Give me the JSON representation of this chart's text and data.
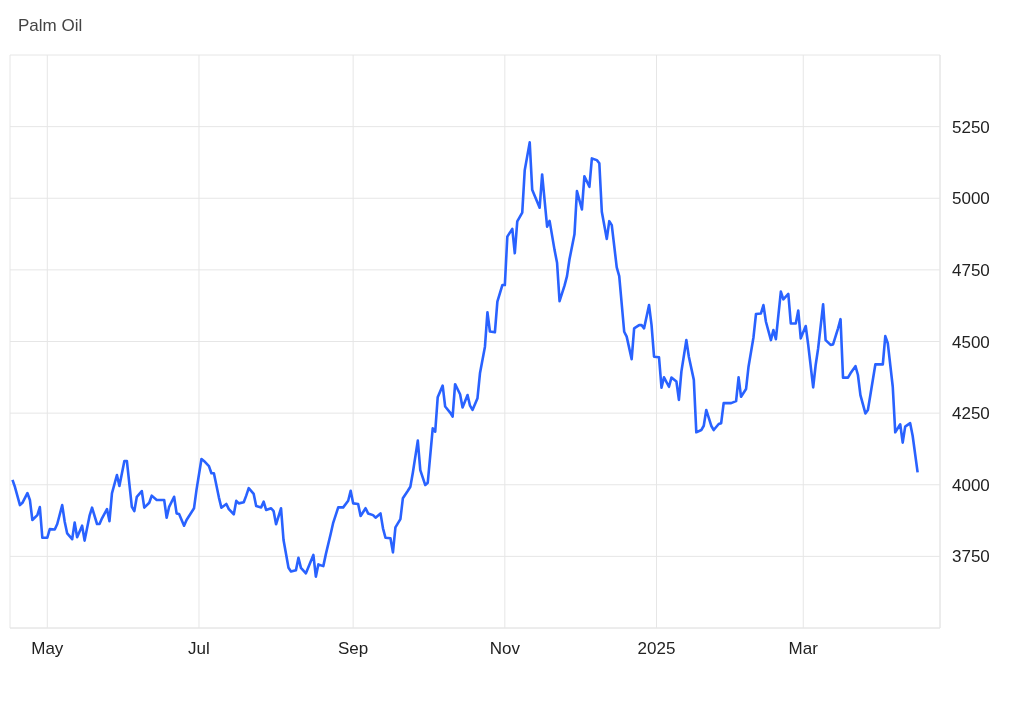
{
  "chart_data": {
    "type": "line",
    "title": "Palm Oil",
    "x": [
      "2024-04-17",
      "2024-04-18",
      "2024-04-20",
      "2024-04-21",
      "2024-04-23",
      "2024-04-24",
      "2024-04-25",
      "2024-04-27",
      "2024-04-28",
      "2024-04-29",
      "2024-05-01",
      "2024-05-02",
      "2024-05-04",
      "2024-05-05",
      "2024-05-07",
      "2024-05-08",
      "2024-05-09",
      "2024-05-11",
      "2024-05-12",
      "2024-05-13",
      "2024-05-15",
      "2024-05-16",
      "2024-05-18",
      "2024-05-19",
      "2024-05-21",
      "2024-05-22",
      "2024-05-23",
      "2024-05-25",
      "2024-05-26",
      "2024-05-27",
      "2024-05-29",
      "2024-05-30",
      "2024-06-01",
      "2024-06-02",
      "2024-06-04",
      "2024-06-05",
      "2024-06-06",
      "2024-06-08",
      "2024-06-09",
      "2024-06-11",
      "2024-06-12",
      "2024-06-14",
      "2024-06-17",
      "2024-06-18",
      "2024-06-19",
      "2024-06-21",
      "2024-06-22",
      "2024-06-23",
      "2024-06-25",
      "2024-06-26",
      "2024-06-29",
      "2024-06-30",
      "2024-07-02",
      "2024-07-03",
      "2024-07-05",
      "2024-07-06",
      "2024-07-07",
      "2024-07-09",
      "2024-07-10",
      "2024-07-12",
      "2024-07-13",
      "2024-07-15",
      "2024-07-16",
      "2024-07-17",
      "2024-07-19",
      "2024-07-20",
      "2024-07-21",
      "2024-07-23",
      "2024-07-24",
      "2024-07-26",
      "2024-07-27",
      "2024-07-28",
      "2024-07-30",
      "2024-07-31",
      "2024-08-01",
      "2024-08-03",
      "2024-08-04",
      "2024-08-06",
      "2024-08-07",
      "2024-08-09",
      "2024-08-10",
      "2024-08-11",
      "2024-08-13",
      "2024-08-16",
      "2024-08-17",
      "2024-08-18",
      "2024-08-20",
      "2024-08-21",
      "2024-08-23",
      "2024-08-24",
      "2024-08-26",
      "2024-08-28",
      "2024-08-30",
      "2024-08-31",
      "2024-09-01",
      "2024-09-03",
      "2024-09-04",
      "2024-09-06",
      "2024-09-07",
      "2024-09-09",
      "2024-09-10",
      "2024-09-12",
      "2024-09-13",
      "2024-09-14",
      "2024-09-16",
      "2024-09-17",
      "2024-09-18",
      "2024-09-20",
      "2024-09-21",
      "2024-09-23",
      "2024-09-24",
      "2024-09-25",
      "2024-09-27",
      "2024-09-28",
      "2024-09-30",
      "2024-10-01",
      "2024-10-03",
      "2024-10-04",
      "2024-10-05",
      "2024-10-07",
      "2024-10-08",
      "2024-10-10",
      "2024-10-11",
      "2024-10-12",
      "2024-10-14",
      "2024-10-15",
      "2024-10-17",
      "2024-10-18",
      "2024-10-19",
      "2024-10-21",
      "2024-10-22",
      "2024-10-24",
      "2024-10-25",
      "2024-10-26",
      "2024-10-28",
      "2024-10-29",
      "2024-10-31",
      "2024-11-01",
      "2024-11-02",
      "2024-11-04",
      "2024-11-05",
      "2024-11-06",
      "2024-11-08",
      "2024-11-09",
      "2024-11-11",
      "2024-11-12",
      "2024-11-14",
      "2024-11-15",
      "2024-11-16",
      "2024-11-18",
      "2024-11-19",
      "2024-11-21",
      "2024-11-22",
      "2024-11-23",
      "2024-11-25",
      "2024-11-26",
      "2024-11-27",
      "2024-11-29",
      "2024-11-30",
      "2024-12-02",
      "2024-12-03",
      "2024-12-05",
      "2024-12-06",
      "2024-12-08",
      "2024-12-09",
      "2024-12-10",
      "2024-12-12",
      "2024-12-13",
      "2024-12-14",
      "2024-12-16",
      "2024-12-17",
      "2024-12-19",
      "2024-12-20",
      "2024-12-22",
      "2024-12-23",
      "2024-12-25",
      "2024-12-26",
      "2024-12-27",
      "2024-12-29",
      "2024-12-30",
      "2024-12-31",
      "2025-01-02",
      "2025-01-03",
      "2025-01-04",
      "2025-01-06",
      "2025-01-07",
      "2025-01-09",
      "2025-01-10",
      "2025-01-11",
      "2025-01-13",
      "2025-01-14",
      "2025-01-16",
      "2025-01-17",
      "2025-01-19",
      "2025-01-20",
      "2025-01-21",
      "2025-01-23",
      "2025-01-24",
      "2025-01-26",
      "2025-01-27",
      "2025-01-28",
      "2025-01-30",
      "2025-01-31",
      "2025-02-02",
      "2025-02-03",
      "2025-02-04",
      "2025-02-06",
      "2025-02-07",
      "2025-02-09",
      "2025-02-10",
      "2025-02-12",
      "2025-02-13",
      "2025-02-14",
      "2025-02-16",
      "2025-02-17",
      "2025-02-18",
      "2025-02-20",
      "2025-02-21",
      "2025-02-23",
      "2025-02-24",
      "2025-02-26",
      "2025-02-27",
      "2025-02-28",
      "2025-03-02",
      "2025-03-03",
      "2025-03-05",
      "2025-03-06",
      "2025-03-07",
      "2025-03-09",
      "2025-03-10",
      "2025-03-12",
      "2025-03-13",
      "2025-03-15",
      "2025-03-16",
      "2025-03-17",
      "2025-03-19",
      "2025-03-20",
      "2025-03-22",
      "2025-03-23",
      "2025-03-24",
      "2025-03-26",
      "2025-03-27",
      "2025-03-28",
      "2025-03-30",
      "2025-03-31",
      "2025-04-02",
      "2025-04-03",
      "2025-04-04",
      "2025-04-06",
      "2025-04-07",
      "2025-04-09",
      "2025-04-10",
      "2025-04-11",
      "2025-04-13",
      "2025-04-14",
      "2025-04-16"
    ],
    "series": [
      {
        "color": "#2962ff",
        "values": [
          4017,
          3992,
          3929,
          3937,
          3971,
          3947,
          3877,
          3894,
          3922,
          3815,
          3815,
          3845,
          3844,
          3863,
          3929,
          3871,
          3830,
          3810,
          3868,
          3817,
          3857,
          3805,
          3892,
          3920,
          3863,
          3863,
          3883,
          3915,
          3873,
          3970,
          4034,
          3996,
          4083,
          4083,
          3923,
          3908,
          3958,
          3978,
          3920,
          3937,
          3962,
          3947,
          3947,
          3885,
          3923,
          3958,
          3900,
          3898,
          3857,
          3877,
          3918,
          3982,
          4090,
          4083,
          4065,
          4040,
          4040,
          3956,
          3920,
          3933,
          3915,
          3897,
          3944,
          3935,
          3939,
          3962,
          3988,
          3968,
          3926,
          3921,
          3941,
          3912,
          3918,
          3908,
          3862,
          3918,
          3807,
          3710,
          3697,
          3702,
          3745,
          3710,
          3691,
          3755,
          3679,
          3722,
          3716,
          3757,
          3830,
          3868,
          3921,
          3921,
          3944,
          3979,
          3935,
          3933,
          3891,
          3918,
          3900,
          3894,
          3885,
          3900,
          3848,
          3815,
          3813,
          3764,
          3851,
          3880,
          3953,
          3979,
          3993,
          4042,
          4154,
          4051,
          3999,
          4007,
          4197,
          4185,
          4305,
          4346,
          4273,
          4252,
          4238,
          4351,
          4316,
          4270,
          4313,
          4276,
          4261,
          4302,
          4389,
          4482,
          4602,
          4535,
          4532,
          4639,
          4697,
          4697,
          4866,
          4893,
          4808,
          4919,
          4950,
          5098,
          5195,
          5030,
          4988,
          4967,
          5083,
          4901,
          4921,
          4819,
          4775,
          4641,
          4695,
          4728,
          4787,
          4874,
          5025,
          4961,
          5077,
          5040,
          5139,
          5133,
          5122,
          4953,
          4858,
          4920,
          4906,
          4759,
          4728,
          4534,
          4517,
          4438,
          4546,
          4557,
          4557,
          4546,
          4627,
          4557,
          4447,
          4445,
          4339,
          4375,
          4342,
          4374,
          4360,
          4296,
          4395,
          4505,
          4447,
          4366,
          4183,
          4191,
          4206,
          4261,
          4206,
          4191,
          4212,
          4215,
          4285,
          4285,
          4285,
          4292,
          4375,
          4307,
          4334,
          4412,
          4515,
          4596,
          4598,
          4627,
          4569,
          4505,
          4540,
          4508,
          4674,
          4647,
          4666,
          4563,
          4563,
          4608,
          4511,
          4554,
          4488,
          4340,
          4418,
          4476,
          4630,
          4505,
          4488,
          4490,
          4546,
          4578,
          4374,
          4374,
          4389,
          4414,
          4383,
          4313,
          4249,
          4261,
          4313,
          4420,
          4420,
          4420,
          4519,
          4494,
          4342,
          4183,
          4211,
          4147,
          4203,
          4215,
          4171,
          4043
        ]
      }
    ],
    "xlim": [
      "2024-04-16",
      "2025-04-25"
    ],
    "xticks": [
      {
        "value": "2024-05-01",
        "label": "May"
      },
      {
        "value": "2024-07-01",
        "label": "Jul"
      },
      {
        "value": "2024-09-01",
        "label": "Sep"
      },
      {
        "value": "2024-11-01",
        "label": "Nov"
      },
      {
        "value": "2025-01-01",
        "label": "2025"
      },
      {
        "value": "2025-03-01",
        "label": "Mar"
      }
    ],
    "ylim": [
      3500,
      5500
    ],
    "yticks": [
      {
        "value": 3500,
        "label": null
      },
      3750,
      4000,
      4250,
      4500,
      4750,
      5000,
      5250,
      {
        "value": 5500,
        "label": null
      }
    ],
    "grid": true,
    "marker": "none",
    "line_style": "solid"
  }
}
